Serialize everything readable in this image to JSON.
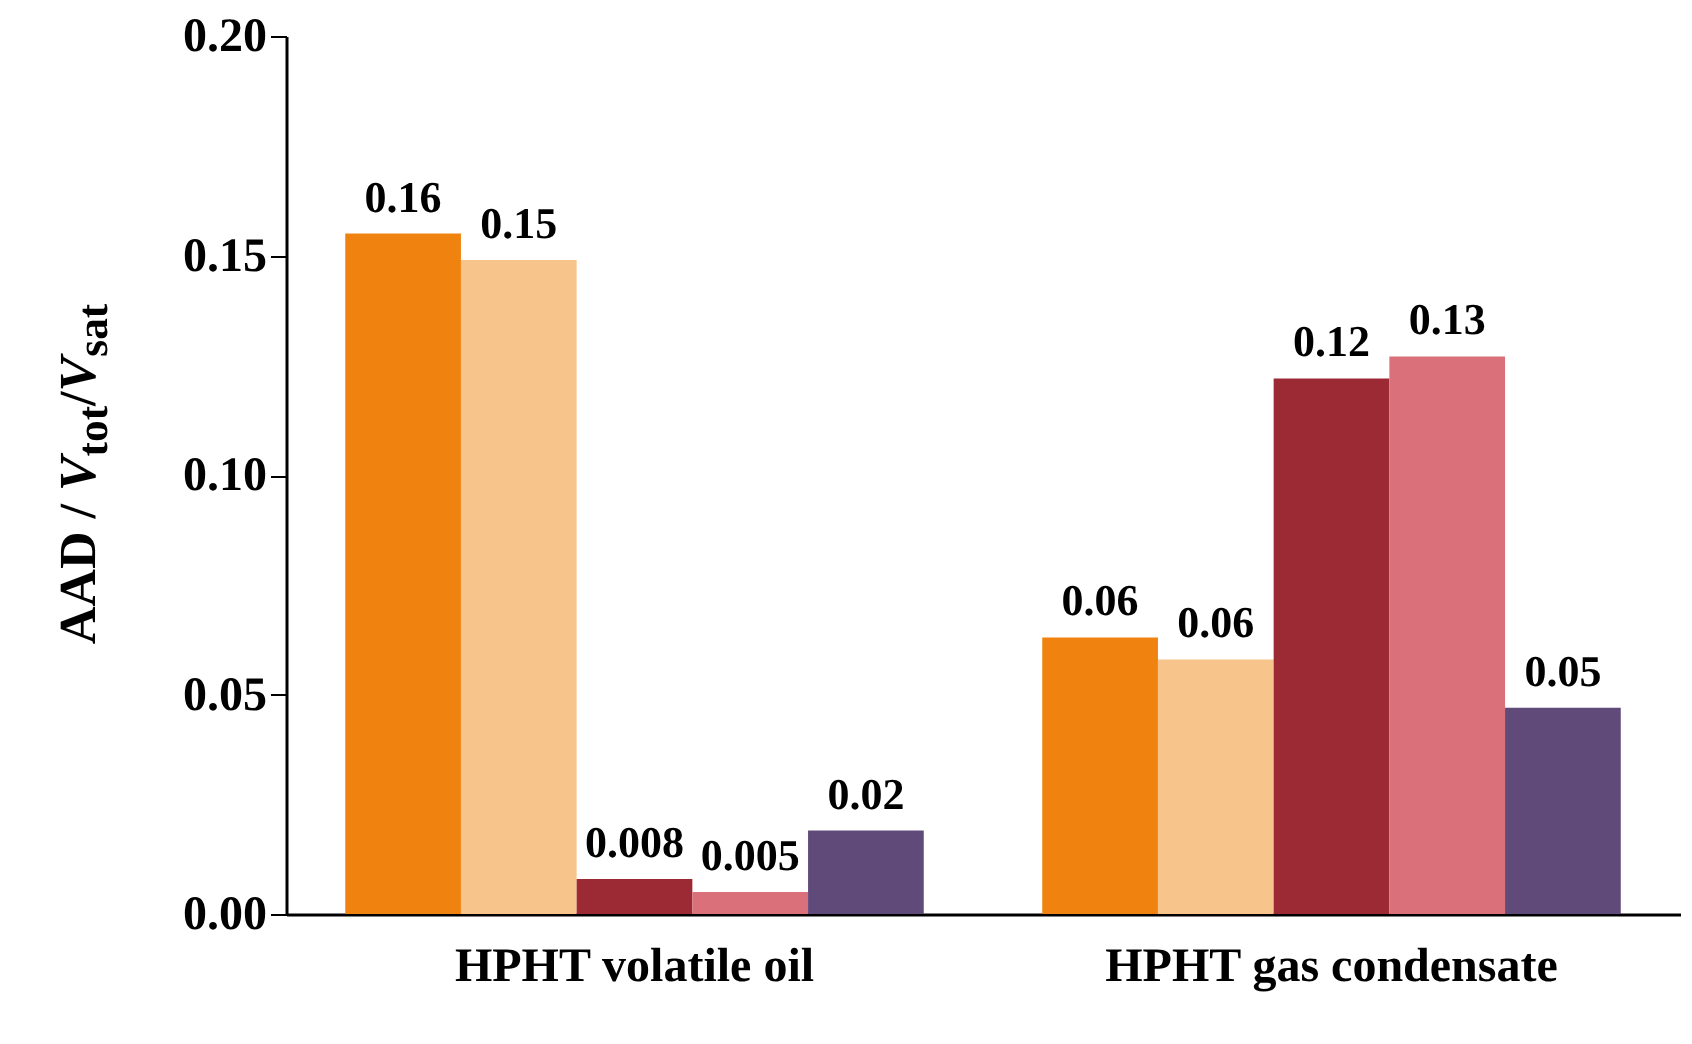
{
  "chart_data": {
    "type": "bar",
    "ylabel": "AAD /  V$_{tot}$/V$_{sat}$",
    "categories": [
      "HPHT volatile oil",
      "HPHT gas condensate"
    ],
    "series": [
      {
        "color": "#f0820f",
        "values": [
          0.155,
          0.063
        ],
        "value_labels": [
          "0.16",
          "0.06"
        ]
      },
      {
        "color": "#f7c58c",
        "values": [
          0.149,
          0.058
        ],
        "value_labels": [
          "0.15",
          "0.06"
        ]
      },
      {
        "color": "#9c2a35",
        "values": [
          0.008,
          0.122
        ],
        "value_labels": [
          "0.008",
          "0.12"
        ]
      },
      {
        "color": "#d9707a",
        "values": [
          0.005,
          0.127
        ],
        "value_labels": [
          "0.005",
          "0.13"
        ]
      },
      {
        "color": "#5f4a7a",
        "values": [
          0.019,
          0.047
        ],
        "value_labels": [
          "0.02",
          "0.05"
        ]
      }
    ],
    "ylim": [
      0,
      0.2
    ],
    "yticks": [
      {
        "value": 0,
        "label": "0.00"
      },
      0.05,
      {
        "value": 0.1,
        "label": "0.10"
      },
      0.15,
      {
        "value": 0.2,
        "label": "0.20"
      }
    ]
  }
}
